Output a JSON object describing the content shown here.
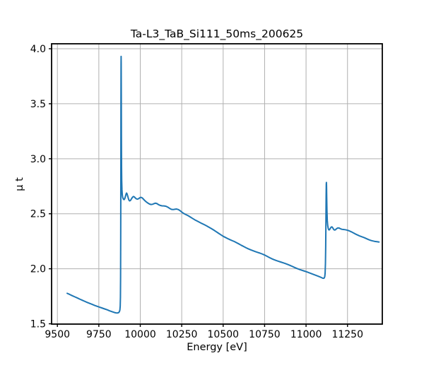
{
  "chart_data": {
    "type": "line",
    "title": "Ta-L3_TaB_Si111_50ms_200625",
    "xlabel": "Energy [eV]",
    "ylabel": "μ t",
    "xlim": [
      9465,
      11460
    ],
    "ylim": [
      1.497,
      4.045
    ],
    "xticks": [
      9500,
      9750,
      10000,
      10250,
      10500,
      10750,
      11000,
      11250
    ],
    "xtick_labels": [
      "9500",
      "9750",
      "10000",
      "10250",
      "10500",
      "10750",
      "11000",
      "11250"
    ],
    "yticks": [
      1.5,
      2.0,
      2.5,
      3.0,
      3.5,
      4.0
    ],
    "ytick_labels": [
      "1.5",
      "2.0",
      "2.5",
      "3.0",
      "3.5",
      "4.0"
    ],
    "grid": true,
    "legend": "none",
    "line_color": "#1f77b4",
    "grid_color": "#b0b0b0",
    "spine_color": "#000000",
    "background_color": "#ffffff",
    "series": [
      {
        "name": "mu_t",
        "points": [
          [
            9559,
            1.777
          ],
          [
            9575,
            1.766
          ],
          [
            9590,
            1.755
          ],
          [
            9605,
            1.745
          ],
          [
            9620,
            1.735
          ],
          [
            9635,
            1.724
          ],
          [
            9650,
            1.714
          ],
          [
            9665,
            1.704
          ],
          [
            9680,
            1.694
          ],
          [
            9695,
            1.685
          ],
          [
            9710,
            1.676
          ],
          [
            9725,
            1.667
          ],
          [
            9740,
            1.659
          ],
          [
            9755,
            1.651
          ],
          [
            9770,
            1.643
          ],
          [
            9785,
            1.635
          ],
          [
            9800,
            1.627
          ],
          [
            9815,
            1.618
          ],
          [
            9830,
            1.61
          ],
          [
            9843,
            1.603
          ],
          [
            9854,
            1.599
          ],
          [
            9862,
            1.598
          ],
          [
            9869,
            1.601
          ],
          [
            9874,
            1.61
          ],
          [
            9877,
            1.625
          ],
          [
            9879,
            1.66
          ],
          [
            9880.3,
            1.74
          ],
          [
            9881.2,
            1.92
          ],
          [
            9882,
            2.3
          ],
          [
            9882.8,
            2.9
          ],
          [
            9883.4,
            3.5
          ],
          [
            9884,
            3.85
          ],
          [
            9884.4,
            3.93
          ],
          [
            9884.9,
            3.87
          ],
          [
            9885.5,
            3.6
          ],
          [
            9886.2,
            3.2
          ],
          [
            9887,
            2.93
          ],
          [
            9888,
            2.8
          ],
          [
            9889.5,
            2.72
          ],
          [
            9891.5,
            2.672
          ],
          [
            9894,
            2.648
          ],
          [
            9898,
            2.633
          ],
          [
            9902,
            2.628
          ],
          [
            9906,
            2.636
          ],
          [
            9910,
            2.655
          ],
          [
            9914,
            2.678
          ],
          [
            9917,
            2.688
          ],
          [
            9920,
            2.682
          ],
          [
            9924,
            2.662
          ],
          [
            9928,
            2.64
          ],
          [
            9932,
            2.623
          ],
          [
            9936,
            2.617
          ],
          [
            9941,
            2.621
          ],
          [
            9947,
            2.636
          ],
          [
            9953,
            2.65
          ],
          [
            9959,
            2.657
          ],
          [
            9965,
            2.652
          ],
          [
            9971,
            2.642
          ],
          [
            9977,
            2.635
          ],
          [
            9984,
            2.633
          ],
          [
            9991,
            2.638
          ],
          [
            9998,
            2.646
          ],
          [
            10005,
            2.649
          ],
          [
            10012,
            2.644
          ],
          [
            10019,
            2.633
          ],
          [
            10027,
            2.62
          ],
          [
            10036,
            2.608
          ],
          [
            10046,
            2.597
          ],
          [
            10056,
            2.588
          ],
          [
            10065,
            2.584
          ],
          [
            10074,
            2.586
          ],
          [
            10083,
            2.592
          ],
          [
            10092,
            2.596
          ],
          [
            10101,
            2.592
          ],
          [
            10110,
            2.583
          ],
          [
            10120,
            2.576
          ],
          [
            10131,
            2.572
          ],
          [
            10143,
            2.571
          ],
          [
            10155,
            2.568
          ],
          [
            10166,
            2.56
          ],
          [
            10177,
            2.549
          ],
          [
            10188,
            2.54
          ],
          [
            10198,
            2.538
          ],
          [
            10208,
            2.541
          ],
          [
            10219,
            2.543
          ],
          [
            10230,
            2.538
          ],
          [
            10241,
            2.527
          ],
          [
            10252,
            2.513
          ],
          [
            10264,
            2.501
          ],
          [
            10276,
            2.492
          ],
          [
            10289,
            2.482
          ],
          [
            10302,
            2.47
          ],
          [
            10316,
            2.457
          ],
          [
            10330,
            2.444
          ],
          [
            10344,
            2.433
          ],
          [
            10358,
            2.422
          ],
          [
            10372,
            2.411
          ],
          [
            10386,
            2.401
          ],
          [
            10400,
            2.39
          ],
          [
            10414,
            2.378
          ],
          [
            10428,
            2.366
          ],
          [
            10442,
            2.353
          ],
          [
            10456,
            2.339
          ],
          [
            10470,
            2.325
          ],
          [
            10484,
            2.311
          ],
          [
            10498,
            2.297
          ],
          [
            10512,
            2.286
          ],
          [
            10526,
            2.275
          ],
          [
            10540,
            2.265
          ],
          [
            10554,
            2.256
          ],
          [
            10568,
            2.247
          ],
          [
            10582,
            2.236
          ],
          [
            10596,
            2.225
          ],
          [
            10610,
            2.213
          ],
          [
            10624,
            2.202
          ],
          [
            10638,
            2.191
          ],
          [
            10652,
            2.181
          ],
          [
            10666,
            2.172
          ],
          [
            10680,
            2.164
          ],
          [
            10694,
            2.156
          ],
          [
            10708,
            2.149
          ],
          [
            10722,
            2.142
          ],
          [
            10736,
            2.134
          ],
          [
            10750,
            2.125
          ],
          [
            10764,
            2.114
          ],
          [
            10778,
            2.103
          ],
          [
            10792,
            2.092
          ],
          [
            10806,
            2.083
          ],
          [
            10820,
            2.075
          ],
          [
            10834,
            2.068
          ],
          [
            10848,
            2.061
          ],
          [
            10862,
            2.054
          ],
          [
            10876,
            2.047
          ],
          [
            10890,
            2.039
          ],
          [
            10904,
            2.03
          ],
          [
            10918,
            2.021
          ],
          [
            10932,
            2.011
          ],
          [
            10946,
            2.002
          ],
          [
            10960,
            1.994
          ],
          [
            10974,
            1.987
          ],
          [
            10988,
            1.98
          ],
          [
            11002,
            1.973
          ],
          [
            11016,
            1.965
          ],
          [
            11030,
            1.957
          ],
          [
            11044,
            1.949
          ],
          [
            11058,
            1.941
          ],
          [
            11072,
            1.933
          ],
          [
            11084,
            1.926
          ],
          [
            11094,
            1.919
          ],
          [
            11101,
            1.914
          ],
          [
            11106,
            1.913
          ],
          [
            11110,
            1.917
          ],
          [
            11113,
            1.93
          ],
          [
            11115,
            1.96
          ],
          [
            11117,
            2.05
          ],
          [
            11118.5,
            2.2
          ],
          [
            11120,
            2.45
          ],
          [
            11121,
            2.65
          ],
          [
            11122,
            2.77
          ],
          [
            11122.8,
            2.785
          ],
          [
            11123.6,
            2.75
          ],
          [
            11124.6,
            2.65
          ],
          [
            11126,
            2.53
          ],
          [
            11128,
            2.44
          ],
          [
            11130.5,
            2.395
          ],
          [
            11133.5,
            2.368
          ],
          [
            11137,
            2.354
          ],
          [
            11141,
            2.354
          ],
          [
            11146,
            2.366
          ],
          [
            11151,
            2.378
          ],
          [
            11156,
            2.381
          ],
          [
            11161,
            2.372
          ],
          [
            11166,
            2.359
          ],
          [
            11171,
            2.352
          ],
          [
            11177,
            2.354
          ],
          [
            11184,
            2.364
          ],
          [
            11191,
            2.371
          ],
          [
            11198,
            2.371
          ],
          [
            11206,
            2.365
          ],
          [
            11215,
            2.359
          ],
          [
            11225,
            2.357
          ],
          [
            11236,
            2.355
          ],
          [
            11248,
            2.351
          ],
          [
            11260,
            2.345
          ],
          [
            11273,
            2.336
          ],
          [
            11286,
            2.326
          ],
          [
            11299,
            2.315
          ],
          [
            11312,
            2.306
          ],
          [
            11325,
            2.297
          ],
          [
            11338,
            2.29
          ],
          [
            11351,
            2.283
          ],
          [
            11364,
            2.274
          ],
          [
            11377,
            2.265
          ],
          [
            11390,
            2.258
          ],
          [
            11402,
            2.253
          ],
          [
            11414,
            2.249
          ],
          [
            11427,
            2.246
          ],
          [
            11440,
            2.243
          ]
        ]
      }
    ]
  }
}
